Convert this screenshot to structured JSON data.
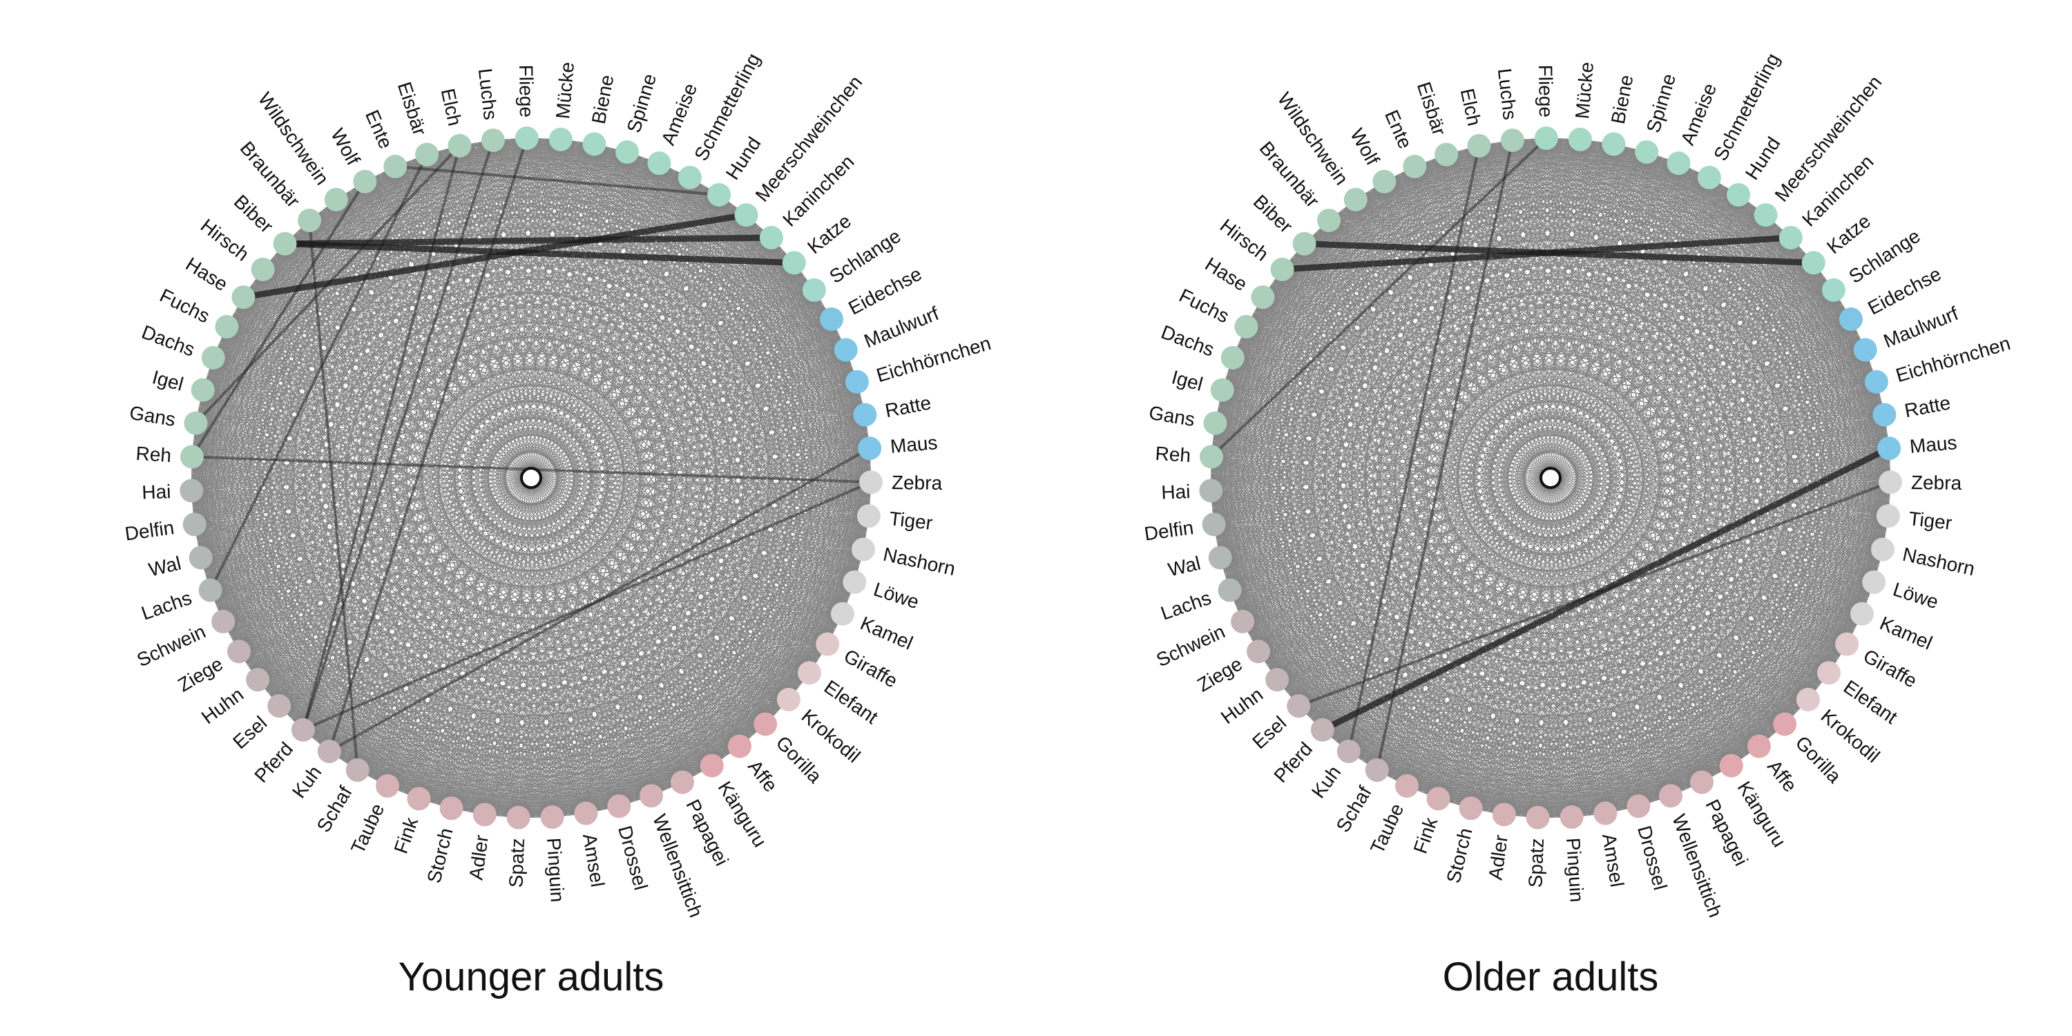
{
  "panels": [
    {
      "title": "Younger adults",
      "strong_edges": [
        [
          "Kaninchen",
          "Biber"
        ],
        [
          "Katze",
          "Biber"
        ],
        [
          "Meerschweinchen",
          "Hase"
        ],
        [
          "Maus",
          "Kuh"
        ],
        [
          "Zebra",
          "Pferd"
        ],
        [
          "Elch",
          "Pferd"
        ],
        [
          "Luchs",
          "Pferd"
        ],
        [
          "Elch",
          "Gans"
        ],
        [
          "Eisbär",
          "Lachs"
        ],
        [
          "Hund",
          "Ente"
        ],
        [
          "Reh",
          "Zebra"
        ],
        [
          "Wolf",
          "Reh"
        ],
        [
          "Fliege",
          "Kuh"
        ],
        [
          "Braunbär",
          "Schaf"
        ]
      ]
    },
    {
      "title": "Older adults",
      "strong_edges": [
        [
          "Katze",
          "Biber"
        ],
        [
          "Kaninchen",
          "Hirsch"
        ],
        [
          "Maus",
          "Pferd"
        ],
        [
          "Zebra",
          "Esel"
        ],
        [
          "Fliege",
          "Reh"
        ],
        [
          "Elch",
          "Kuh"
        ],
        [
          "Luchs",
          "Schaf"
        ]
      ]
    }
  ],
  "nodes": [
    {
      "name": "Maus",
      "color": "#7fc6e8"
    },
    {
      "name": "Ratte",
      "color": "#7fc6e8"
    },
    {
      "name": "Eichhörnchen",
      "color": "#7fc6e8"
    },
    {
      "name": "Maulwurf",
      "color": "#7fc6e8"
    },
    {
      "name": "Eidechse",
      "color": "#80c5e3"
    },
    {
      "name": "Schlange",
      "color": "#a3d9cc"
    },
    {
      "name": "Katze",
      "color": "#a3d9c6"
    },
    {
      "name": "Kaninchen",
      "color": "#a3d9c6"
    },
    {
      "name": "Meerschweinchen",
      "color": "#a3d9c6"
    },
    {
      "name": "Hund",
      "color": "#a3d9c6"
    },
    {
      "name": "Schmetterling",
      "color": "#a6d8c6"
    },
    {
      "name": "Ameise",
      "color": "#a6d8c6"
    },
    {
      "name": "Spinne",
      "color": "#a6d8c6"
    },
    {
      "name": "Biene",
      "color": "#a6d8c6"
    },
    {
      "name": "Mücke",
      "color": "#a6d8c6"
    },
    {
      "name": "Fliege",
      "color": "#a6d8c6"
    },
    {
      "name": "Luchs",
      "color": "#abcfbb"
    },
    {
      "name": "Elch",
      "color": "#abcfbb"
    },
    {
      "name": "Eisbär",
      "color": "#abcfbb"
    },
    {
      "name": "Ente",
      "color": "#abcfbb"
    },
    {
      "name": "Wolf",
      "color": "#abcfbb"
    },
    {
      "name": "Wildschwein",
      "color": "#abcfbb"
    },
    {
      "name": "Braunbär",
      "color": "#abcfbb"
    },
    {
      "name": "Biber",
      "color": "#abcfbb"
    },
    {
      "name": "Hirsch",
      "color": "#abcfbb"
    },
    {
      "name": "Hase",
      "color": "#abcfbb"
    },
    {
      "name": "Fuchs",
      "color": "#abcfbb"
    },
    {
      "name": "Dachs",
      "color": "#abcfbb"
    },
    {
      "name": "Igel",
      "color": "#abcfbb"
    },
    {
      "name": "Gans",
      "color": "#abcfbb"
    },
    {
      "name": "Reh",
      "color": "#abcfbb"
    },
    {
      "name": "Hai",
      "color": "#b2b8b5"
    },
    {
      "name": "Delfin",
      "color": "#b2b8b5"
    },
    {
      "name": "Wal",
      "color": "#b2b8b5"
    },
    {
      "name": "Lachs",
      "color": "#b2b8b5"
    },
    {
      "name": "Schwein",
      "color": "#c3b4b8"
    },
    {
      "name": "Ziege",
      "color": "#c3b4b8"
    },
    {
      "name": "Huhn",
      "color": "#c3b4b8"
    },
    {
      "name": "Esel",
      "color": "#c3b4b8"
    },
    {
      "name": "Pferd",
      "color": "#c3b4b8"
    },
    {
      "name": "Kuh",
      "color": "#c3b4b8"
    },
    {
      "name": "Schaf",
      "color": "#c3b4b8"
    },
    {
      "name": "Taube",
      "color": "#d4b2b6"
    },
    {
      "name": "Fink",
      "color": "#d4b2b6"
    },
    {
      "name": "Storch",
      "color": "#d4b2b6"
    },
    {
      "name": "Adler",
      "color": "#d4b2b6"
    },
    {
      "name": "Spatz",
      "color": "#d4b2b6"
    },
    {
      "name": "Pinguin",
      "color": "#d4b2b6"
    },
    {
      "name": "Amsel",
      "color": "#d4b2b6"
    },
    {
      "name": "Drossel",
      "color": "#d4b2b6"
    },
    {
      "name": "Wellensittich",
      "color": "#d4b2b6"
    },
    {
      "name": "Papagei",
      "color": "#d4b2b6"
    },
    {
      "name": "Känguru",
      "color": "#dfa9af"
    },
    {
      "name": "Affe",
      "color": "#dfa9af"
    },
    {
      "name": "Gorilla",
      "color": "#dfa9af"
    },
    {
      "name": "Krokodil",
      "color": "#dfc9cb"
    },
    {
      "name": "Elefant",
      "color": "#dfc9cb"
    },
    {
      "name": "Giraffe",
      "color": "#dfc9cb"
    },
    {
      "name": "Kamel",
      "color": "#d6d6d6"
    },
    {
      "name": "Löwe",
      "color": "#d6d6d6"
    },
    {
      "name": "Nashorn",
      "color": "#d6d6d6"
    },
    {
      "name": "Tiger",
      "color": "#d6d6d6"
    },
    {
      "name": "Zebra",
      "color": "#d6d6d6"
    }
  ]
}
